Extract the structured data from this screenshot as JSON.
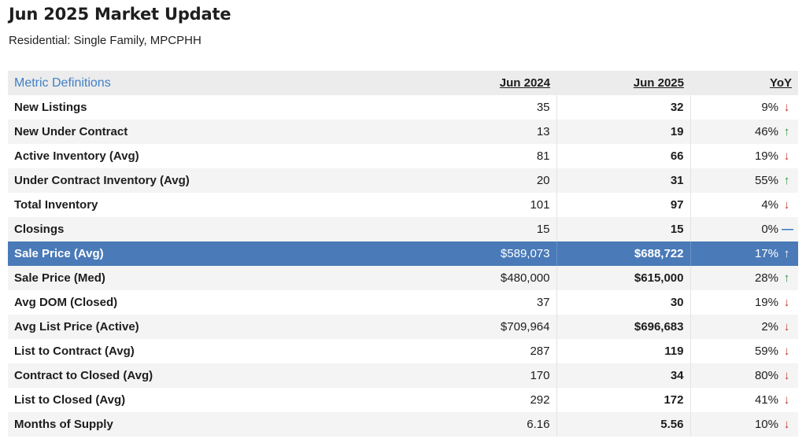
{
  "header": {
    "title": "Jun 2025 Market Update",
    "subtitle": "Residential: Single Family, MPCPHH"
  },
  "table": {
    "columns": {
      "definitions_link": "Metric Definitions",
      "col1": "Jun 2024",
      "col2": "Jun 2025",
      "col3": "YoY"
    },
    "rows": [
      {
        "label": "New Listings",
        "v2024": "35",
        "v2025": "32",
        "yoy": "9%",
        "dir": "down",
        "arrow": "↓"
      },
      {
        "label": "New Under Contract",
        "v2024": "13",
        "v2025": "19",
        "yoy": "46%",
        "dir": "up",
        "arrow": "↑"
      },
      {
        "label": "Active Inventory (Avg)",
        "v2024": "81",
        "v2025": "66",
        "yoy": "19%",
        "dir": "down",
        "arrow": "↓"
      },
      {
        "label": "Under Contract Inventory (Avg)",
        "v2024": "20",
        "v2025": "31",
        "yoy": "55%",
        "dir": "up",
        "arrow": "↑"
      },
      {
        "label": "Total Inventory",
        "v2024": "101",
        "v2025": "97",
        "yoy": "4%",
        "dir": "down",
        "arrow": "↓"
      },
      {
        "label": "Closings",
        "v2024": "15",
        "v2025": "15",
        "yoy": "0%",
        "dir": "flat",
        "arrow": "—"
      },
      {
        "label": "Sale Price (Avg)",
        "v2024": "$589,073",
        "v2025": "$688,722",
        "yoy": "17%",
        "dir": "up",
        "arrow": "↑",
        "highlight": true
      },
      {
        "label": "Sale Price (Med)",
        "v2024": "$480,000",
        "v2025": "$615,000",
        "yoy": "28%",
        "dir": "up",
        "arrow": "↑"
      },
      {
        "label": "Avg DOM (Closed)",
        "v2024": "37",
        "v2025": "30",
        "yoy": "19%",
        "dir": "down",
        "arrow": "↓"
      },
      {
        "label": "Avg List Price (Active)",
        "v2024": "$709,964",
        "v2025": "$696,683",
        "yoy": "2%",
        "dir": "down",
        "arrow": "↓"
      },
      {
        "label": "List to Contract (Avg)",
        "v2024": "287",
        "v2025": "119",
        "yoy": "59%",
        "dir": "down",
        "arrow": "↓"
      },
      {
        "label": "Contract to Closed (Avg)",
        "v2024": "170",
        "v2025": "34",
        "yoy": "80%",
        "dir": "down",
        "arrow": "↓"
      },
      {
        "label": "List to Closed (Avg)",
        "v2024": "292",
        "v2025": "172",
        "yoy": "41%",
        "dir": "down",
        "arrow": "↓"
      },
      {
        "label": "Months of Supply",
        "v2024": "6.16",
        "v2025": "5.56",
        "yoy": "10%",
        "dir": "down",
        "arrow": "↓"
      }
    ]
  },
  "colors": {
    "highlight_row": "#4a7ab8",
    "link": "#3f7fc7",
    "down_arrow": "#c0312b",
    "up_arrow": "#2f8f3c",
    "flat_arrow": "#3a78c2"
  }
}
